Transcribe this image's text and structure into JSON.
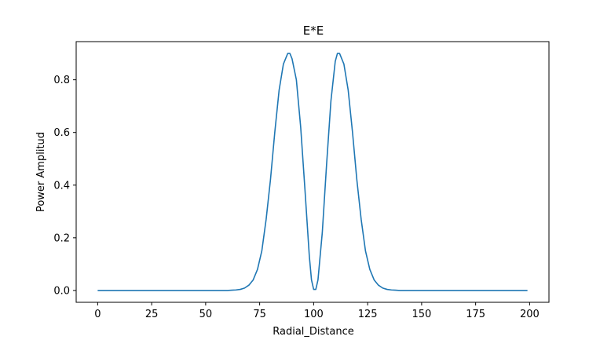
{
  "chart_data": {
    "type": "line",
    "title": "E*E",
    "xlabel": "Radial_Distance",
    "ylabel": "Power Amplitud",
    "xlim": [
      -9.95,
      208.95
    ],
    "ylim": [
      -0.045,
      0.945
    ],
    "xticks": [
      0,
      25,
      50,
      75,
      100,
      125,
      150,
      175,
      200
    ],
    "yticks": [
      0.0,
      0.2,
      0.4,
      0.6,
      0.8
    ],
    "ytick_labels": [
      "0.0",
      "0.2",
      "0.4",
      "0.6",
      "0.8"
    ],
    "grid": false,
    "series": [
      {
        "color": "#1f77b4",
        "x": [
          0,
          60,
          62,
          64,
          66,
          68,
          70,
          72,
          74,
          76,
          78,
          80,
          82,
          84,
          86,
          88,
          89,
          90,
          92,
          94,
          96,
          98,
          99,
          100,
          101,
          102,
          104,
          106,
          108,
          110,
          111,
          112,
          114,
          116,
          118,
          120,
          122,
          124,
          126,
          128,
          130,
          132,
          134,
          136,
          138,
          140,
          199
        ],
        "y": [
          0.0,
          0.0,
          0.001,
          0.002,
          0.004,
          0.009,
          0.02,
          0.04,
          0.08,
          0.15,
          0.27,
          0.42,
          0.6,
          0.76,
          0.86,
          0.9,
          0.9,
          0.88,
          0.8,
          0.62,
          0.38,
          0.13,
          0.04,
          0.004,
          0.004,
          0.04,
          0.22,
          0.48,
          0.72,
          0.87,
          0.9,
          0.9,
          0.86,
          0.76,
          0.6,
          0.42,
          0.27,
          0.15,
          0.08,
          0.04,
          0.02,
          0.009,
          0.004,
          0.002,
          0.001,
          0.0,
          0.0
        ]
      }
    ]
  }
}
